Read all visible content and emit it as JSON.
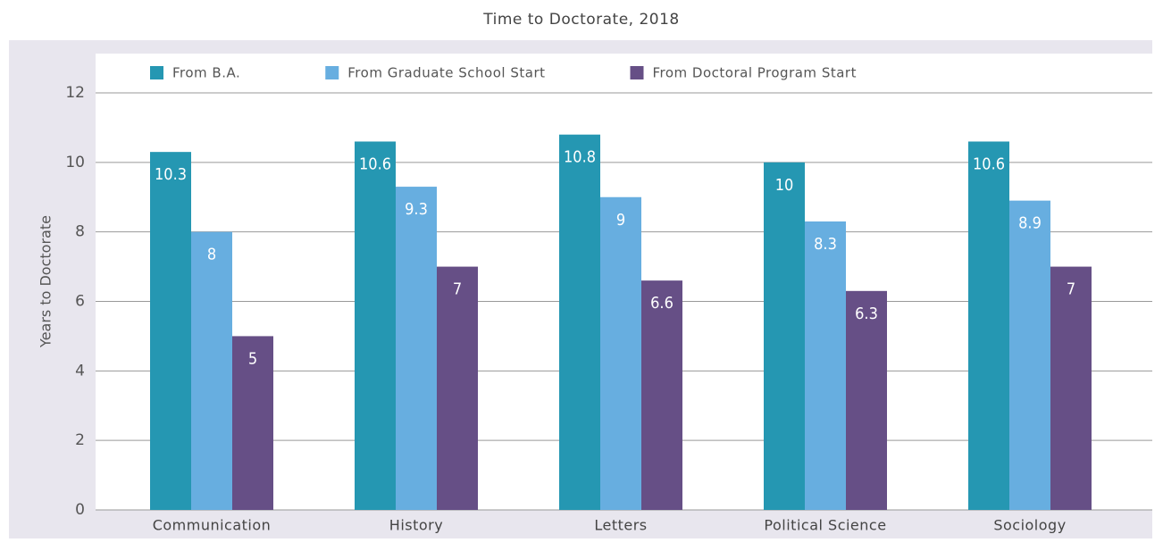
{
  "chart_data": {
    "type": "bar",
    "title": "Time to Doctorate, 2018",
    "y_label": "Years to Doctorate",
    "categories": [
      "Communication",
      "History",
      "Letters",
      "Political Science",
      "Sociology"
    ],
    "series": [
      {
        "name": "From B.A.",
        "color": "#2597b2",
        "values": [
          10.3,
          10.6,
          10.8,
          10,
          10.6
        ]
      },
      {
        "name": "From Graduate School Start",
        "color": "#67aee0",
        "values": [
          8,
          9.3,
          9,
          8.3,
          8.9
        ]
      },
      {
        "name": "From Doctoral Program Start",
        "color": "#664f86",
        "values": [
          5,
          7,
          6.6,
          6.3,
          7
        ]
      }
    ],
    "ylim": [
      0,
      12
    ],
    "yticks": [
      0,
      2,
      4,
      6,
      8,
      10,
      12
    ],
    "grid": true,
    "legend": "top-left"
  }
}
